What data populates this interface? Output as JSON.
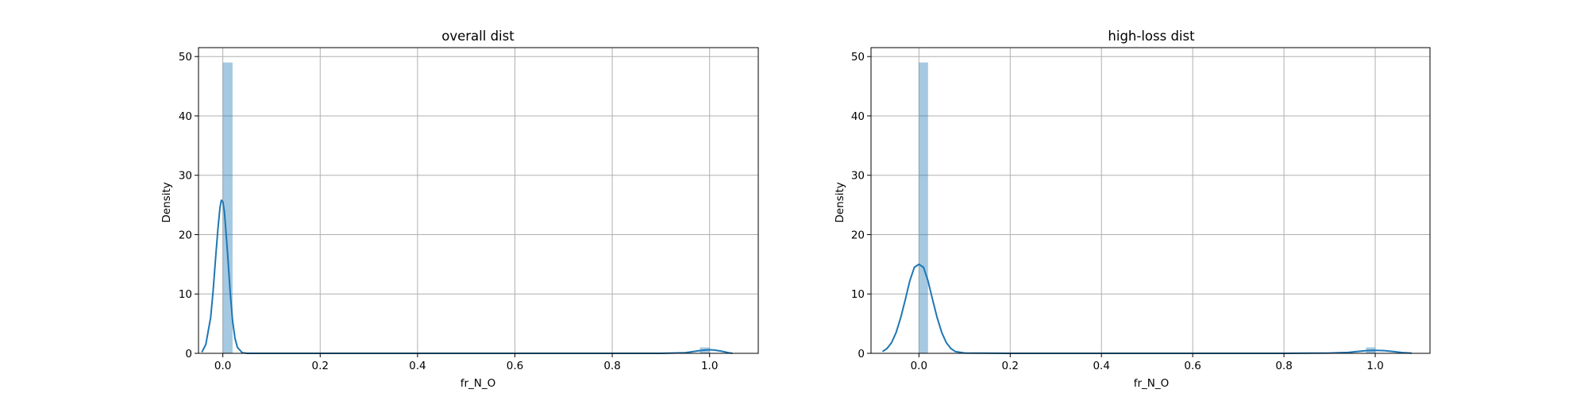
{
  "chart_data": [
    {
      "type": "histogram+kde",
      "title": "overall dist",
      "xlabel": "fr_N_O",
      "ylabel": "Density",
      "xlim": [
        -0.05,
        1.1
      ],
      "ylim": [
        0,
        51.5
      ],
      "xticks": [
        "0.0",
        "0.2",
        "0.4",
        "0.6",
        "0.8",
        "1.0"
      ],
      "xtick_values": [
        0.0,
        0.2,
        0.4,
        0.6,
        0.8,
        1.0
      ],
      "yticks": [
        "0",
        "10",
        "20",
        "30",
        "40",
        "50"
      ],
      "ytick_values": [
        0,
        10,
        20,
        30,
        40,
        50
      ],
      "grid": true,
      "bars": [
        {
          "x0": 0.0,
          "x1": 0.02,
          "density": 49.0
        },
        {
          "x0": 0.98,
          "x1": 1.0,
          "density": 1.0
        }
      ],
      "kde": {
        "x": [
          -0.043,
          -0.035,
          -0.025,
          -0.02,
          -0.015,
          -0.01,
          -0.006,
          -0.003,
          0.0,
          0.003,
          0.006,
          0.01,
          0.015,
          0.02,
          0.025,
          0.03,
          0.04,
          0.05,
          0.06,
          0.2,
          0.4,
          0.6,
          0.8,
          0.9,
          0.95,
          0.975,
          0.99,
          1.0,
          1.01,
          1.025,
          1.04,
          1.047
        ],
        "y": [
          0.2,
          1.5,
          6.0,
          10.5,
          16.0,
          21.0,
          24.5,
          25.8,
          25.5,
          24.0,
          21.0,
          16.5,
          10.5,
          5.5,
          2.5,
          1.0,
          0.1,
          0.0,
          0.0,
          0.0,
          0.0,
          0.0,
          0.0,
          0.0,
          0.1,
          0.4,
          0.55,
          0.6,
          0.55,
          0.35,
          0.1,
          0.0
        ]
      },
      "color": "#1f77b4"
    },
    {
      "type": "histogram+kde",
      "title": "high-loss dist",
      "xlabel": "fr_N_O",
      "ylabel": "Density",
      "xlim": [
        -0.105,
        1.12
      ],
      "ylim": [
        0,
        51.5
      ],
      "xticks": [
        "0.0",
        "0.2",
        "0.4",
        "0.6",
        "0.8",
        "1.0"
      ],
      "xtick_values": [
        0.0,
        0.2,
        0.4,
        0.6,
        0.8,
        1.0
      ],
      "yticks": [
        "0",
        "10",
        "20",
        "30",
        "40",
        "50"
      ],
      "ytick_values": [
        0,
        10,
        20,
        30,
        40,
        50
      ],
      "grid": true,
      "bars": [
        {
          "x0": 0.0,
          "x1": 0.02,
          "density": 49.0
        },
        {
          "x0": 0.98,
          "x1": 1.0,
          "density": 1.0
        }
      ],
      "kde": {
        "x": [
          -0.08,
          -0.07,
          -0.06,
          -0.05,
          -0.04,
          -0.03,
          -0.02,
          -0.01,
          0.0,
          0.01,
          0.02,
          0.03,
          0.04,
          0.05,
          0.06,
          0.07,
          0.08,
          0.1,
          0.2,
          0.4,
          0.6,
          0.8,
          0.9,
          0.94,
          0.96,
          0.98,
          1.0,
          1.02,
          1.04,
          1.06,
          1.08
        ],
        "y": [
          0.3,
          0.8,
          1.8,
          3.5,
          6.0,
          9.0,
          12.2,
          14.5,
          15.0,
          14.5,
          12.2,
          9.0,
          6.0,
          3.5,
          1.8,
          0.8,
          0.3,
          0.05,
          0.0,
          0.0,
          0.0,
          0.0,
          0.05,
          0.15,
          0.3,
          0.45,
          0.5,
          0.45,
          0.3,
          0.12,
          0.03
        ]
      },
      "color": "#1f77b4"
    }
  ]
}
